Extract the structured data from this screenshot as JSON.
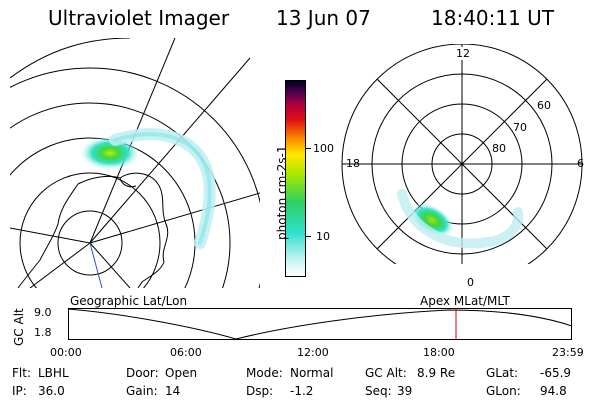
{
  "header": {
    "instrument": "Ultraviolet Imager",
    "date": "13 Jun 07",
    "time": "18:40:11 UT"
  },
  "colorbar": {
    "label": "photon cm-2s-1",
    "ticks": [
      "100",
      "10"
    ]
  },
  "polar": {
    "top_label": "12",
    "bottom_label": "0",
    "left_label": "18",
    "right_label": "6",
    "ring_labels": [
      "60",
      "70",
      "80"
    ]
  },
  "projection_labels": {
    "left": "Geographic Lat/Lon",
    "right": "Apex MLat/MLT"
  },
  "altitude_panel": {
    "axis_label": "GC Alt",
    "y_ticks": [
      "9.0",
      "1.8"
    ],
    "x_ticks": [
      "00:00",
      "06:00",
      "12:00",
      "18:00",
      "23:59"
    ],
    "marker_color": "#d00000"
  },
  "status": {
    "filter_label": "Flt:",
    "filter_value": "LBHL",
    "ip_label": "IP:",
    "ip_value": "36.0",
    "door_label": "Door:",
    "door_value": "Open",
    "gain_label": "Gain:",
    "gain_value": "14",
    "mode_label": "Mode:",
    "mode_value": "Normal",
    "dsp_label": "Dsp:",
    "dsp_value": "-1.2",
    "gcalt_label": "GC Alt:",
    "gcalt_value": "8.9 Re",
    "seq_label": "Seq:",
    "seq_value": "39",
    "glat_label": "GLat:",
    "glat_value": "-65.9",
    "glon_label": "GLon:",
    "glon_value": "94.8"
  }
}
